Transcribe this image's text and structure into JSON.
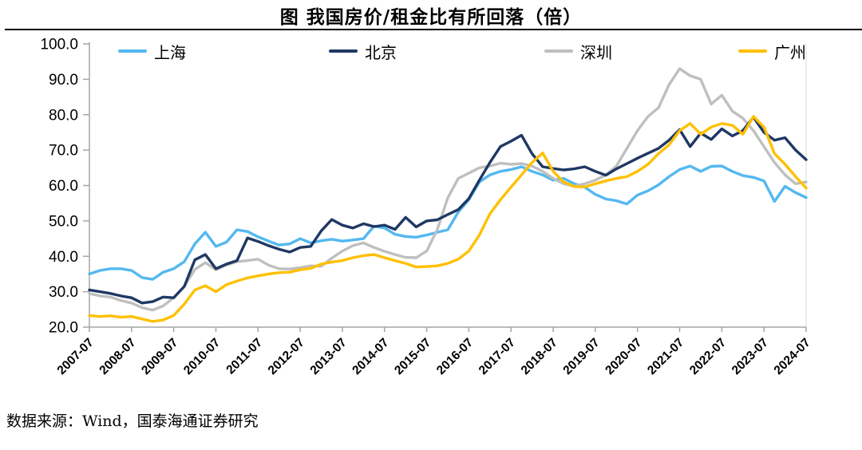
{
  "header": {
    "title": "图 我国房价/租金比有所回落（倍）"
  },
  "legend": [
    {
      "id": "shanghai",
      "label": "上海",
      "color": "#53B8F0"
    },
    {
      "id": "beijing",
      "label": "北京",
      "color": "#1F3864"
    },
    {
      "id": "shenzhen",
      "label": "深圳",
      "color": "#BFBFBF"
    },
    {
      "id": "guangzhou",
      "label": "广州",
      "color": "#FFC000"
    }
  ],
  "footer": {
    "source": "数据来源：Wind，国泰海通证券研究"
  },
  "chart_data": {
    "type": "line",
    "title": "图 我国房价/租金比有所回落（倍）",
    "xlabel": "",
    "ylabel": "",
    "ylim": [
      20,
      100
    ],
    "y_tick_step": 10,
    "y_tick_format": "one_decimal",
    "grid": false,
    "legend_position": "top",
    "x_tick_labels": [
      "2007-07",
      "2008-07",
      "2009-07",
      "2010-07",
      "2011-07",
      "2012-07",
      "2013-07",
      "2014-07",
      "2015-07",
      "2016-07",
      "2017-07",
      "2018-07",
      "2019-07",
      "2020-07",
      "2021-07",
      "2022-07",
      "2023-07",
      "2024-07"
    ],
    "x": [
      "2007-07",
      "2007-10",
      "2008-01",
      "2008-04",
      "2008-07",
      "2008-10",
      "2009-01",
      "2009-04",
      "2009-07",
      "2009-10",
      "2010-01",
      "2010-04",
      "2010-07",
      "2010-10",
      "2011-01",
      "2011-04",
      "2011-07",
      "2011-10",
      "2012-01",
      "2012-04",
      "2012-07",
      "2012-10",
      "2013-01",
      "2013-04",
      "2013-07",
      "2013-10",
      "2014-01",
      "2014-04",
      "2014-07",
      "2014-10",
      "2015-01",
      "2015-04",
      "2015-07",
      "2015-10",
      "2016-01",
      "2016-04",
      "2016-07",
      "2016-10",
      "2017-01",
      "2017-04",
      "2017-07",
      "2017-10",
      "2018-01",
      "2018-04",
      "2018-07",
      "2018-10",
      "2019-01",
      "2019-04",
      "2019-07",
      "2019-10",
      "2020-01",
      "2020-04",
      "2020-07",
      "2020-10",
      "2021-01",
      "2021-04",
      "2021-07",
      "2021-10",
      "2022-01",
      "2022-04",
      "2022-07",
      "2022-10",
      "2023-01",
      "2023-04",
      "2023-07",
      "2023-10",
      "2024-01",
      "2024-04",
      "2024-07"
    ],
    "series": [
      {
        "name": "上海",
        "color": "#53B8F0",
        "values": [
          35.0,
          36.0,
          36.5,
          36.5,
          36.0,
          34.0,
          33.5,
          35.5,
          36.5,
          38.5,
          43.5,
          46.8,
          42.8,
          44.0,
          47.5,
          47.0,
          45.5,
          44.3,
          43.2,
          43.5,
          45.0,
          43.8,
          44.4,
          44.8,
          44.3,
          44.6,
          45.0,
          48.5,
          48.0,
          46.2,
          45.6,
          45.4,
          46.0,
          46.8,
          47.5,
          52.5,
          56.0,
          61.0,
          63.0,
          64.0,
          64.5,
          65.3,
          64.0,
          63.0,
          61.5,
          62.0,
          60.5,
          59.5,
          57.5,
          56.2,
          55.7,
          54.8,
          57.3,
          58.5,
          60.2,
          62.5,
          64.5,
          65.5,
          64.0,
          65.4,
          65.5,
          64.0,
          62.8,
          62.3,
          61.3,
          55.5,
          59.8,
          58.0,
          56.6
        ]
      },
      {
        "name": "北京",
        "color": "#1F3864",
        "values": [
          30.5,
          30.0,
          29.5,
          28.8,
          28.3,
          26.8,
          27.2,
          28.5,
          28.3,
          31.5,
          39.0,
          40.5,
          36.5,
          37.8,
          38.8,
          45.2,
          44.2,
          43.0,
          42.0,
          41.2,
          42.5,
          42.8,
          47.2,
          50.4,
          48.8,
          48.0,
          49.2,
          48.4,
          48.8,
          47.6,
          51.0,
          48.3,
          50.0,
          50.3,
          51.8,
          53.2,
          56.3,
          61.5,
          66.5,
          71.0,
          72.5,
          74.2,
          69.0,
          65.3,
          64.8,
          64.4,
          64.7,
          65.3,
          64.0,
          62.9,
          64.7,
          66.2,
          67.7,
          69.1,
          70.5,
          72.8,
          75.8,
          71.0,
          74.8,
          73.0,
          76.0,
          74.0,
          75.5,
          79.3,
          75.0,
          72.8,
          73.5,
          70.0,
          67.3
        ]
      },
      {
        "name": "深圳",
        "color": "#BFBFBF",
        "values": [
          29.5,
          28.8,
          28.5,
          27.5,
          26.8,
          25.5,
          24.8,
          26.0,
          28.3,
          31.5,
          36.3,
          38.2,
          36.2,
          37.5,
          38.5,
          38.8,
          39.2,
          37.5,
          36.5,
          36.4,
          36.8,
          37.3,
          37.2,
          39.5,
          41.5,
          43.0,
          43.8,
          42.5,
          41.4,
          40.5,
          39.7,
          39.6,
          41.5,
          47.5,
          56.5,
          62.0,
          63.5,
          65.0,
          65.5,
          66.3,
          66.0,
          66.2,
          65.5,
          64.0,
          62.0,
          60.5,
          59.8,
          60.5,
          61.5,
          63.0,
          65.5,
          70.5,
          75.5,
          79.5,
          82.0,
          88.5,
          93.0,
          91.0,
          90.0,
          83.0,
          85.5,
          81.0,
          79.0,
          75.5,
          71.0,
          66.5,
          63.0,
          60.5,
          61.0
        ]
      },
      {
        "name": "广州",
        "color": "#FFC000",
        "values": [
          23.3,
          23.0,
          23.2,
          22.8,
          23.0,
          22.3,
          21.6,
          22.0,
          23.3,
          26.5,
          30.5,
          31.7,
          30.0,
          32.0,
          33.0,
          33.9,
          34.5,
          35.0,
          35.4,
          35.5,
          36.2,
          36.6,
          37.8,
          38.4,
          38.8,
          39.6,
          40.2,
          40.5,
          39.6,
          38.8,
          38.0,
          37.0,
          37.1,
          37.3,
          38.0,
          39.2,
          41.5,
          46.0,
          52.0,
          56.0,
          59.5,
          63.0,
          66.5,
          69.2,
          64.0,
          61.0,
          59.7,
          59.6,
          60.5,
          61.3,
          62.0,
          62.5,
          64.0,
          66.0,
          69.0,
          71.5,
          75.5,
          77.5,
          74.5,
          76.5,
          77.5,
          77.0,
          74.5,
          79.5,
          76.5,
          69.0,
          66.0,
          62.5,
          59.3
        ]
      }
    ]
  },
  "style": {
    "axis_color": "#A6A6A6",
    "right_border_color": "#D9D9D9",
    "text_color": "#000000"
  }
}
